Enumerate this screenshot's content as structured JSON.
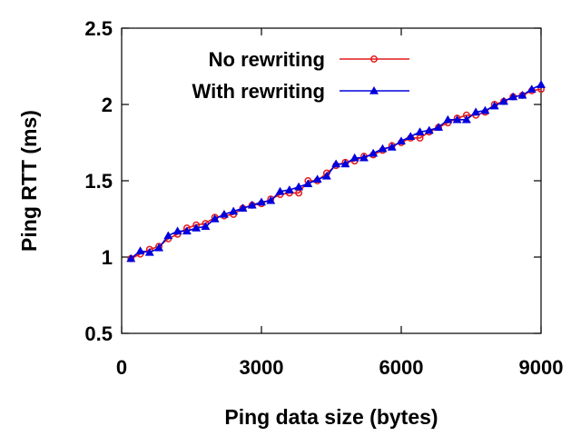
{
  "chart_data": {
    "type": "line",
    "title": "",
    "xlabel": "Ping data size (bytes)",
    "ylabel": "Ping RTT (ms)",
    "xlim": [
      0,
      9000
    ],
    "ylim": [
      0.5,
      2.5
    ],
    "xticks": [
      0,
      3000,
      6000,
      9000
    ],
    "xtick_labels": [
      "0",
      "3000",
      "6000",
      "9000"
    ],
    "yticks": [
      0.5,
      1,
      1.5,
      2,
      2.5
    ],
    "ytick_labels": [
      "0.5",
      "1",
      "1.5",
      "2",
      "2.5"
    ],
    "grid": false,
    "legend_position": "top-right",
    "x": [
      200,
      400,
      600,
      800,
      1000,
      1200,
      1400,
      1600,
      1800,
      2000,
      2200,
      2400,
      2600,
      2800,
      3000,
      3200,
      3400,
      3600,
      3800,
      4000,
      4200,
      4400,
      4600,
      4800,
      5000,
      5200,
      5400,
      5600,
      5800,
      6000,
      6200,
      6400,
      6600,
      6800,
      7000,
      7200,
      7400,
      7600,
      7800,
      8000,
      8200,
      8400,
      8600,
      8800,
      9000
    ],
    "series": [
      {
        "name": "No rewriting",
        "color": "#e41a1c",
        "marker": "circle",
        "values": [
          0.99,
          1.02,
          1.05,
          1.07,
          1.12,
          1.15,
          1.19,
          1.21,
          1.22,
          1.26,
          1.27,
          1.28,
          1.32,
          1.34,
          1.35,
          1.38,
          1.41,
          1.42,
          1.42,
          1.5,
          1.5,
          1.55,
          1.6,
          1.62,
          1.63,
          1.66,
          1.67,
          1.7,
          1.73,
          1.75,
          1.78,
          1.78,
          1.82,
          1.85,
          1.88,
          1.91,
          1.93,
          1.93,
          1.95,
          2.0,
          2.02,
          2.05,
          2.06,
          2.09,
          2.1
        ]
      },
      {
        "name": "With rewriting",
        "color": "#0000dd",
        "marker": "triangle",
        "values": [
          0.99,
          1.04,
          1.03,
          1.06,
          1.14,
          1.17,
          1.17,
          1.19,
          1.2,
          1.25,
          1.28,
          1.3,
          1.32,
          1.34,
          1.36,
          1.37,
          1.43,
          1.44,
          1.46,
          1.48,
          1.51,
          1.53,
          1.61,
          1.61,
          1.65,
          1.65,
          1.68,
          1.71,
          1.72,
          1.76,
          1.79,
          1.82,
          1.83,
          1.85,
          1.9,
          1.9,
          1.9,
          1.95,
          1.96,
          1.99,
          2.02,
          2.05,
          2.06,
          2.1,
          2.13
        ]
      }
    ]
  }
}
